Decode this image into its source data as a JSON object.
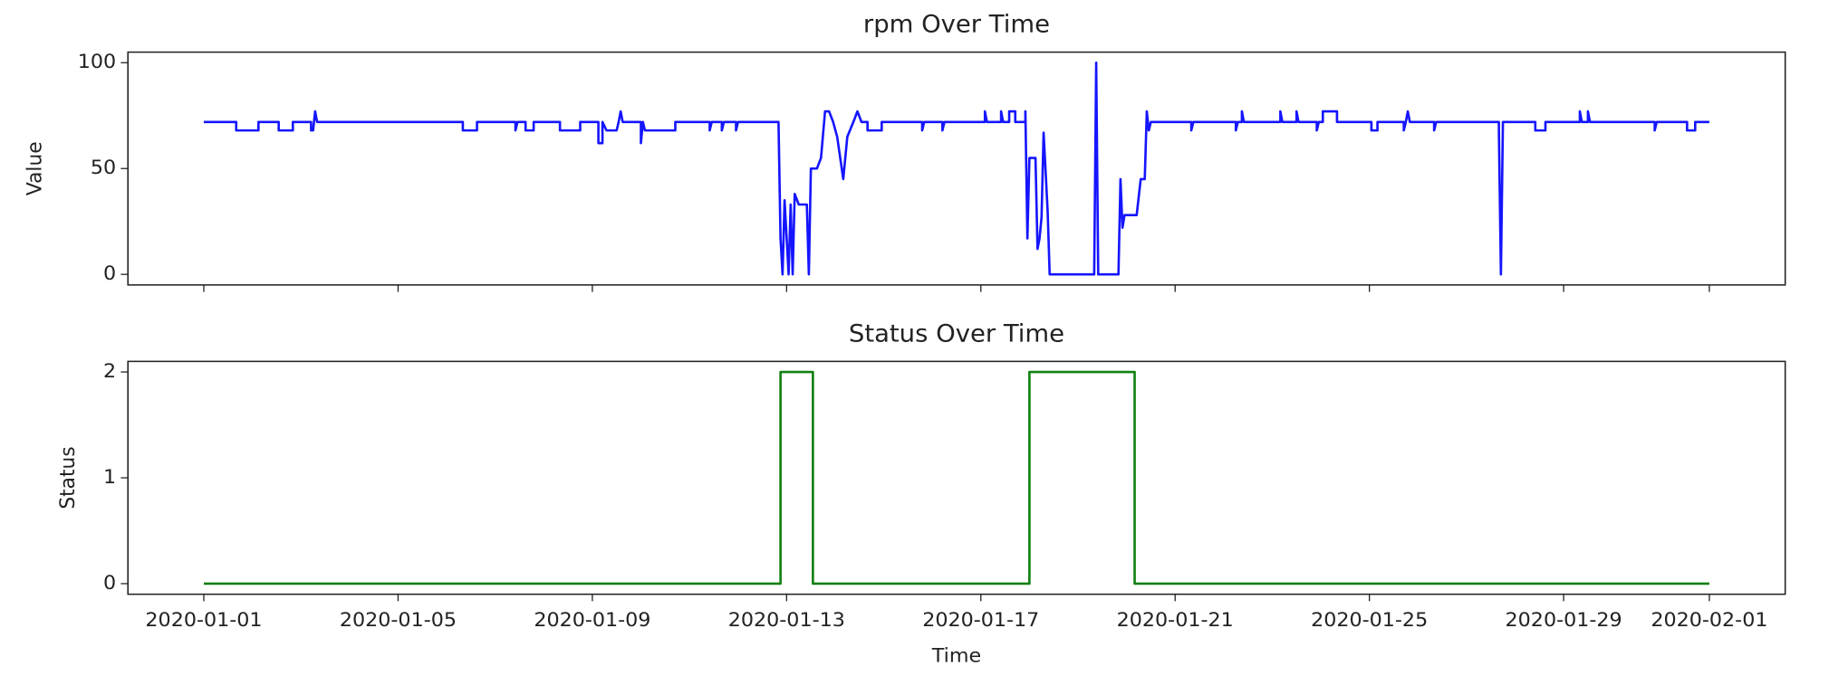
{
  "chart_data": [
    {
      "type": "line",
      "title": "rpm Over Time",
      "ylabel": "Value",
      "xlim": [
        "2019-12-30 10:30",
        "2020-02-02 13:30"
      ],
      "ylim": [
        -5,
        105
      ],
      "yticks": [
        0,
        50,
        100
      ],
      "xticks": [
        "2020-01-01",
        "2020-01-05",
        "2020-01-09",
        "2020-01-13",
        "2020-01-17",
        "2020-01-21",
        "2020-01-25",
        "2020-01-29",
        "2020-02-01"
      ],
      "grid": false,
      "x": [
        "2020-01-01 00:00",
        "2020-01-01 16:00",
        "2020-01-01 16:00",
        "2020-01-02 03:00",
        "2020-01-02 03:00",
        "2020-01-02 13:00",
        "2020-01-02 13:00",
        "2020-01-02 20:00",
        "2020-01-02 20:00",
        "2020-01-03 05:00",
        "2020-01-03 05:00",
        "2020-01-03 06:00",
        "2020-01-03 07:00",
        "2020-01-03 08:00",
        "2020-01-06 08:00",
        "2020-01-06 08:00",
        "2020-01-06 15:00",
        "2020-01-06 15:00",
        "2020-01-07 10:00",
        "2020-01-07 10:00",
        "2020-01-07 11:00",
        "2020-01-07 15:00",
        "2020-01-07 15:00",
        "2020-01-07 19:00",
        "2020-01-07 19:00",
        "2020-01-08 08:00",
        "2020-01-08 08:00",
        "2020-01-08 18:00",
        "2020-01-08 18:00",
        "2020-01-09 03:00",
        "2020-01-09 03:00",
        "2020-01-09 05:00",
        "2020-01-09 05:00",
        "2020-01-09 07:00",
        "2020-01-09 12:00",
        "2020-01-09 13:00",
        "2020-01-09 14:00",
        "2020-01-09 15:00",
        "2020-01-10 00:00",
        "2020-01-10 00:00",
        "2020-01-10 01:00",
        "2020-01-10 02:00",
        "2020-01-10 17:00",
        "2020-01-10 17:00",
        "2020-01-11 10:00",
        "2020-01-11 10:00",
        "2020-01-11 11:00",
        "2020-01-11 16:00",
        "2020-01-11 16:00",
        "2020-01-11 17:00",
        "2020-01-11 23:00",
        "2020-01-11 23:00",
        "2020-01-12 00:00",
        "2020-01-12 20:00",
        "2020-01-12 21:00",
        "2020-01-12 22:00",
        "2020-01-12 23:00",
        "2020-01-13 01:00",
        "2020-01-13 02:00",
        "2020-01-13 03:00",
        "2020-01-13 04:00",
        "2020-01-13 06:00",
        "2020-01-13 10:00",
        "2020-01-13 11:00",
        "2020-01-13 12:00",
        "2020-01-13 15:00",
        "2020-01-13 17:00",
        "2020-01-13 19:00",
        "2020-01-13 21:00",
        "2020-01-13 23:00",
        "2020-01-14 01:00",
        "2020-01-14 04:00",
        "2020-01-14 06:00",
        "2020-01-14 09:00",
        "2020-01-14 11:00",
        "2020-01-14 13:00",
        "2020-01-14 16:00",
        "2020-01-14 16:00",
        "2020-01-14 23:00",
        "2020-01-14 23:00",
        "2020-01-15 19:00",
        "2020-01-15 19:00",
        "2020-01-15 20:00",
        "2020-01-16 05:00",
        "2020-01-16 05:00",
        "2020-01-16 06:00",
        "2020-01-17 02:00",
        "2020-01-17 02:00",
        "2020-01-17 03:00",
        "2020-01-17 10:00",
        "2020-01-17 10:00",
        "2020-01-17 11:00",
        "2020-01-17 14:00",
        "2020-01-17 14:00",
        "2020-01-17 17:00",
        "2020-01-17 17:00",
        "2020-01-17 22:00",
        "2020-01-17 22:00",
        "2020-01-17 23:00",
        "2020-01-18 00:00",
        "2020-01-18 03:00",
        "2020-01-18 04:00",
        "2020-01-18 05:00",
        "2020-01-18 06:00",
        "2020-01-18 07:00",
        "2020-01-18 09:00",
        "2020-01-18 10:00",
        "2020-01-19 08:00",
        "2020-01-19 09:00",
        "2020-01-19 10:00",
        "2020-01-19 20:00",
        "2020-01-19 21:00",
        "2020-01-19 22:00",
        "2020-01-19 23:00",
        "2020-01-20 05:00",
        "2020-01-20 07:00",
        "2020-01-20 09:00",
        "2020-01-20 10:00",
        "2020-01-20 11:00",
        "2020-01-20 12:00",
        "2020-01-21 08:00",
        "2020-01-21 08:00",
        "2020-01-21 09:00",
        "2020-01-22 06:00",
        "2020-01-22 06:00",
        "2020-01-22 07:00",
        "2020-01-22 09:00",
        "2020-01-22 09:00",
        "2020-01-22 10:00",
        "2020-01-23 04:00",
        "2020-01-23 04:00",
        "2020-01-23 05:00",
        "2020-01-23 12:00",
        "2020-01-23 12:00",
        "2020-01-23 13:00",
        "2020-01-23 22:00",
        "2020-01-23 22:00",
        "2020-01-23 23:00",
        "2020-01-24 01:00",
        "2020-01-24 01:00",
        "2020-01-24 08:00",
        "2020-01-24 08:00",
        "2020-01-25 01:00",
        "2020-01-25 01:00",
        "2020-01-25 04:00",
        "2020-01-25 04:00",
        "2020-01-25 17:00",
        "2020-01-25 17:00",
        "2020-01-25 18:00",
        "2020-01-25 19:00",
        "2020-01-25 20:00",
        "2020-01-26 08:00",
        "2020-01-26 08:00",
        "2020-01-26 09:00",
        "2020-01-27 16:00",
        "2020-01-27 16:00",
        "2020-01-27 17:00",
        "2020-01-27 18:00",
        "2020-01-28 10:00",
        "2020-01-28 10:00",
        "2020-01-28 15:00",
        "2020-01-28 15:00",
        "2020-01-29 08:00",
        "2020-01-29 08:00",
        "2020-01-29 09:00",
        "2020-01-29 12:00",
        "2020-01-29 12:00",
        "2020-01-29 13:00",
        "2020-01-30 21:00",
        "2020-01-30 21:00",
        "2020-01-30 22:00",
        "2020-01-31 13:00",
        "2020-01-31 13:00",
        "2020-01-31 17:00",
        "2020-01-31 17:00",
        "2020-02-01 00:00"
      ],
      "series": [
        {
          "color": "#1515ff",
          "values": [
            72,
            72,
            68,
            68,
            72,
            72,
            68,
            68,
            72,
            72,
            68,
            68,
            77,
            72,
            72,
            68,
            68,
            72,
            72,
            68,
            72,
            72,
            68,
            68,
            72,
            72,
            68,
            68,
            72,
            72,
            62,
            62,
            72,
            68,
            68,
            72,
            77,
            72,
            72,
            62,
            72,
            68,
            68,
            72,
            72,
            68,
            72,
            72,
            68,
            72,
            72,
            68,
            72,
            72,
            17,
            0,
            35,
            0,
            33,
            0,
            38,
            33,
            33,
            0,
            50,
            50,
            55,
            77,
            77,
            72,
            65,
            45,
            65,
            72,
            77,
            72,
            72,
            68,
            68,
            72,
            72,
            68,
            72,
            72,
            68,
            72,
            72,
            77,
            72,
            72,
            77,
            72,
            72,
            77,
            77,
            72,
            72,
            77,
            17,
            55,
            55,
            12,
            17,
            27,
            67,
            30,
            0,
            0,
            100,
            0,
            0,
            45,
            22,
            28,
            28,
            45,
            45,
            77,
            68,
            72,
            72,
            68,
            72,
            72,
            68,
            72,
            72,
            77,
            72,
            72,
            77,
            72,
            72,
            77,
            72,
            72,
            68,
            72,
            72,
            77,
            77,
            72,
            72,
            68,
            68,
            72,
            72,
            68,
            72,
            77,
            72,
            72,
            68,
            72,
            72,
            68,
            0,
            72,
            72,
            68,
            68,
            72,
            72,
            77,
            72,
            72,
            77,
            72,
            72,
            68,
            72,
            72,
            68,
            68,
            72,
            72
          ]
        }
      ]
    },
    {
      "type": "line",
      "title": "Status Over Time",
      "ylabel": "Status",
      "xlabel": "Time",
      "xlim": [
        "2019-12-30 10:30",
        "2020-02-02 13:30"
      ],
      "ylim": [
        -0.1,
        2.1
      ],
      "yticks": [
        0,
        1,
        2
      ],
      "xticks": [
        "2020-01-01",
        "2020-01-05",
        "2020-01-09",
        "2020-01-13",
        "2020-01-17",
        "2020-01-21",
        "2020-01-25",
        "2020-01-29",
        "2020-02-01"
      ],
      "grid": false,
      "x": [
        "2020-01-01 00:00",
        "2020-01-12 21:00",
        "2020-01-12 21:00",
        "2020-01-13 13:00",
        "2020-01-13 13:00",
        "2020-01-18 00:00",
        "2020-01-18 00:00",
        "2020-01-20 04:00",
        "2020-01-20 04:00",
        "2020-02-01 00:00"
      ],
      "series": [
        {
          "color": "#108010",
          "values": [
            0,
            0,
            2,
            2,
            0,
            0,
            2,
            2,
            0,
            0
          ]
        }
      ]
    }
  ]
}
